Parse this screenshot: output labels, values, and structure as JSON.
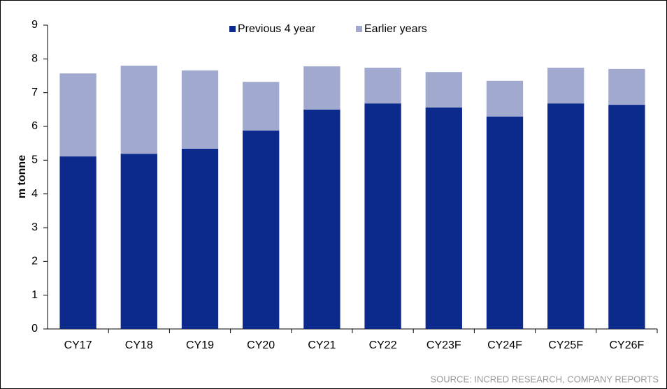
{
  "chart_data": {
    "type": "stacked_bar",
    "y_label": "m tonne",
    "source": "SOURCE: INCRED RESEARCH, COMPANY REPORTS",
    "categories": [
      "CY17",
      "CY18",
      "CY19",
      "CY20",
      "CY21",
      "CY22",
      "CY23F",
      "CY24F",
      "CY25F",
      "CY26F"
    ],
    "series": [
      {
        "name": "Previous 4 year",
        "color": "#0c2a8c",
        "values": [
          5.11,
          5.19,
          5.34,
          5.88,
          6.5,
          6.68,
          6.56,
          6.29,
          6.68,
          6.64
        ]
      },
      {
        "name": "Earlier years",
        "color": "#a1a9cf",
        "values": [
          2.46,
          2.61,
          2.32,
          1.44,
          1.28,
          1.06,
          1.05,
          1.06,
          1.06,
          1.06
        ]
      }
    ],
    "ylim": [
      0,
      9
    ],
    "yticks": [
      0,
      1,
      2,
      3,
      4,
      5,
      6,
      7,
      8,
      9
    ],
    "legend": "top"
  }
}
